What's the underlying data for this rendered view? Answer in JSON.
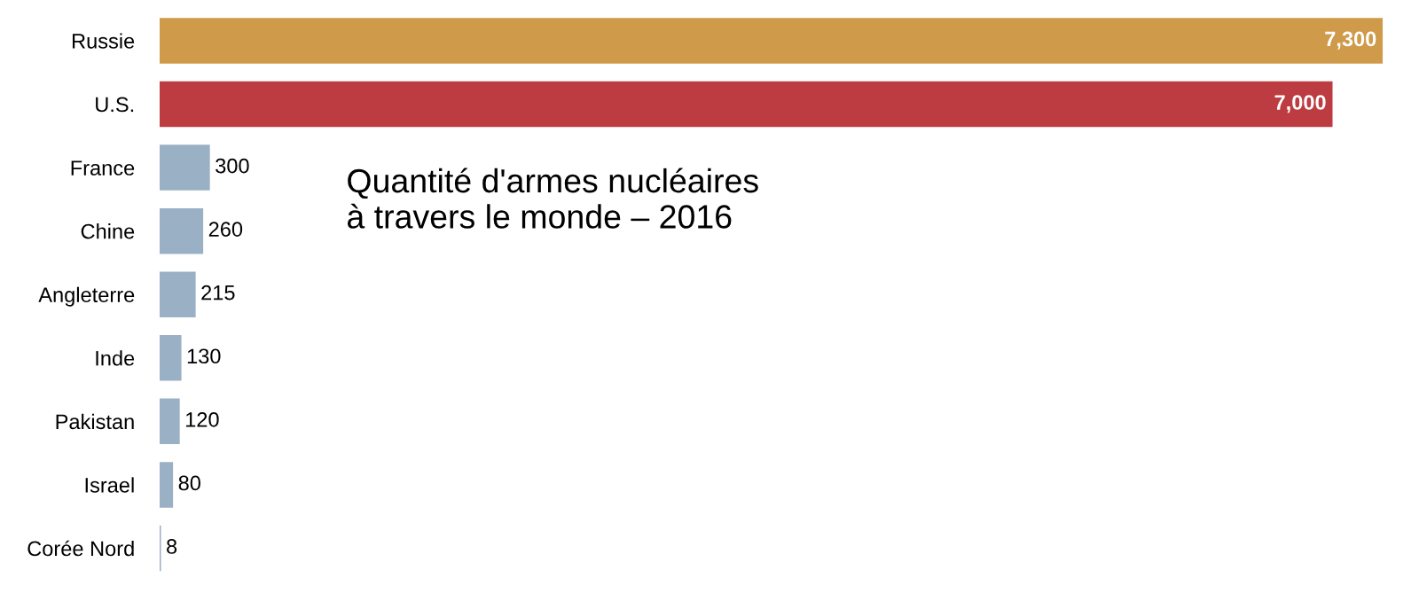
{
  "chart_data": {
    "type": "bar",
    "orientation": "horizontal",
    "title": "Quantité d'armes nucléaires\nà travers le monde – 2016",
    "categories": [
      "Russie",
      "U.S.",
      "France",
      "Chine",
      "Angleterre",
      "Inde",
      "Pakistan",
      "Israel",
      "Corée Nord"
    ],
    "values": [
      7300,
      7000,
      300,
      260,
      215,
      130,
      120,
      80,
      8
    ],
    "colors": [
      "#cf9a4a",
      "#bc3c41",
      "#9ab0c4",
      "#9ab0c4",
      "#9ab0c4",
      "#9ab0c4",
      "#9ab0c4",
      "#9ab0c4",
      "#9ab0c4"
    ],
    "value_labels": [
      "7,300",
      "7,000",
      "300",
      "260",
      "215",
      "130",
      "120",
      "80",
      "8"
    ],
    "grid": false,
    "legend": false
  }
}
